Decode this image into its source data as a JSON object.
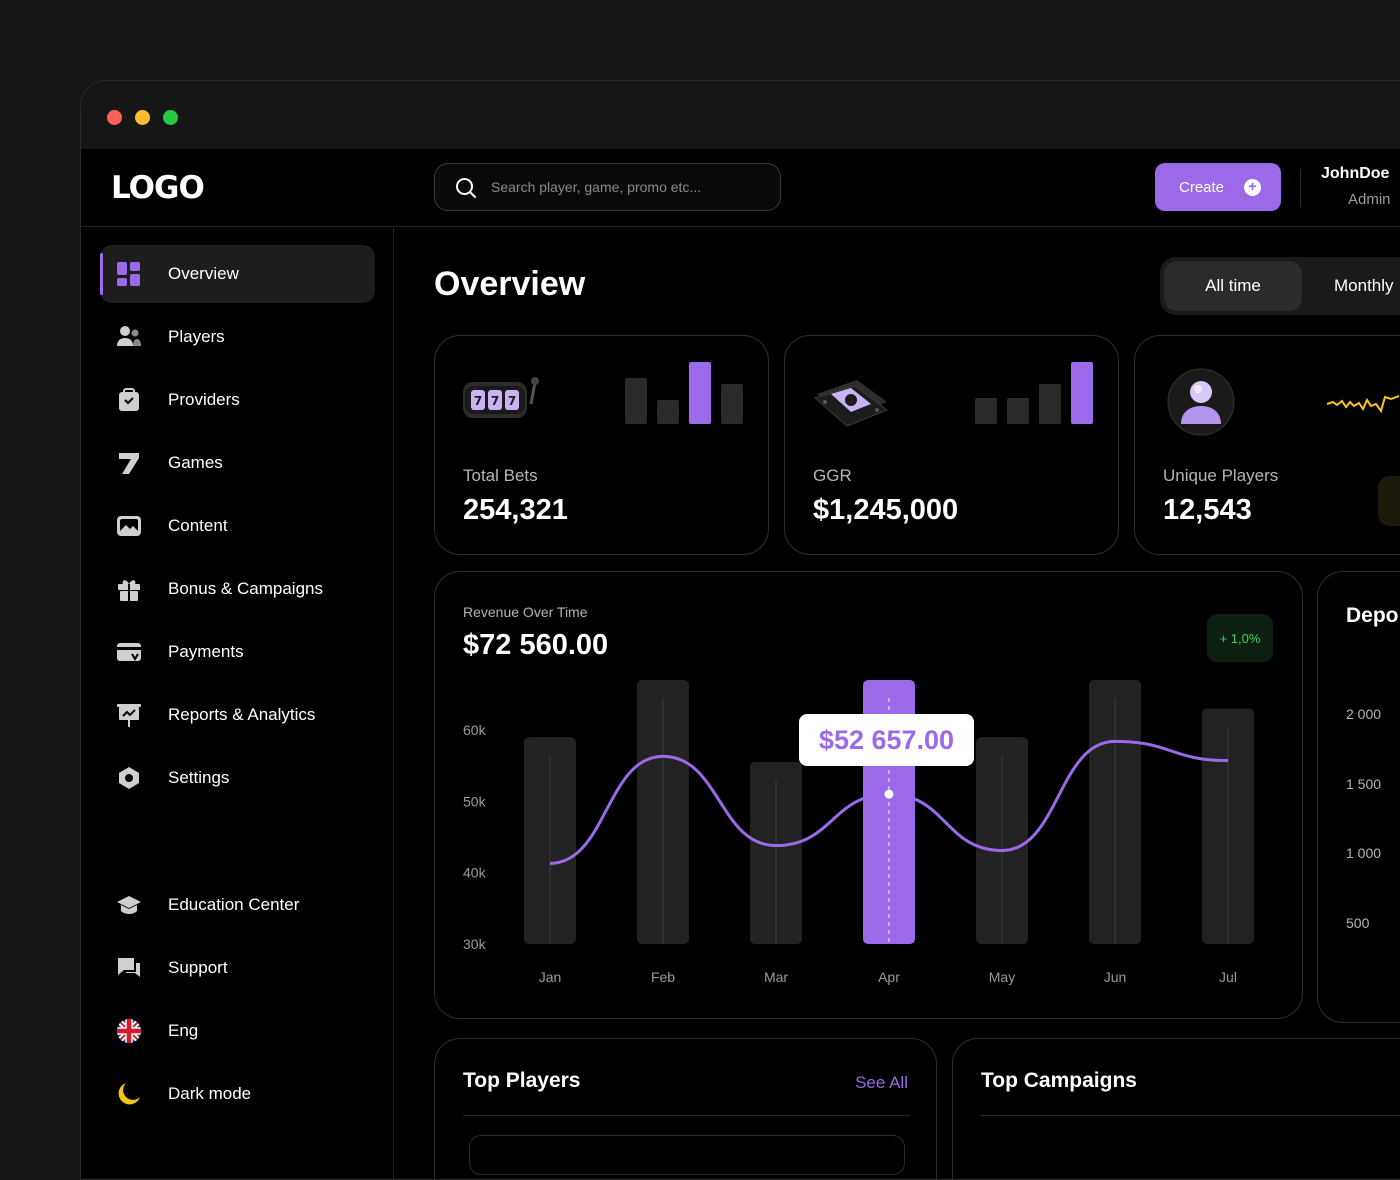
{
  "window": {
    "dots": [
      "#ff5f57",
      "#febc2e",
      "#28c840"
    ]
  },
  "topbar": {
    "logo": "LOGO",
    "search_placeholder": "Search player, game, promo etc...",
    "create_label": "Create",
    "user_name": "JohnDoe",
    "user_role": "Admin"
  },
  "sidebar": {
    "items": [
      {
        "label": "Overview",
        "icon": "grid-icon"
      },
      {
        "label": "Players",
        "icon": "users-icon"
      },
      {
        "label": "Providers",
        "icon": "briefcase-icon"
      },
      {
        "label": "Games",
        "icon": "seven-icon"
      },
      {
        "label": "Content",
        "icon": "image-icon"
      },
      {
        "label": "Bonus & Campaigns",
        "icon": "gift-icon"
      },
      {
        "label": "Payments",
        "icon": "card-icon"
      },
      {
        "label": "Reports & Analytics",
        "icon": "presentation-icon"
      },
      {
        "label": "Settings",
        "icon": "hexagon-icon"
      }
    ],
    "bottom_items": [
      {
        "label": "Education Center",
        "icon": "graduation-cap-icon"
      },
      {
        "label": "Support",
        "icon": "chat-icon"
      },
      {
        "label": "Eng",
        "icon": "uk-flag-icon"
      },
      {
        "label": "Dark mode",
        "icon": "moon-icon"
      }
    ]
  },
  "main": {
    "title": "Overview",
    "tabs": [
      "All time",
      "Monthly"
    ],
    "kpis": [
      {
        "label": "Total Bets",
        "value": "254,321",
        "icon": "slot-machine-icon"
      },
      {
        "label": "GGR",
        "value": "$1,245,000",
        "icon": "money-icon"
      },
      {
        "label": "Unique Players",
        "value": "12,543",
        "icon": "user-avatar-icon"
      }
    ],
    "revenue": {
      "subtitle": "Revenue Over Time",
      "total": "$72 560.00",
      "change": "+ 1,0%",
      "tooltip": "$52 657.00"
    },
    "deposits": {
      "title": "Depo",
      "ticks": [
        "2 000",
        "1 500",
        "1 000",
        "500"
      ]
    },
    "top_players": {
      "title": "Top Players",
      "see_all": "See All"
    },
    "top_campaigns": {
      "title": "Top Campaigns"
    }
  },
  "colors": {
    "accent": "#9b6ae8",
    "positive": "#3bd15a",
    "sparkline": "#f5c518"
  },
  "chart_data": {
    "type": "bar",
    "categories": [
      "Jan",
      "Feb",
      "Mar",
      "Apr",
      "May",
      "Jun",
      "Jul"
    ],
    "series": [
      {
        "type": "bar",
        "values": [
          59000,
          67000,
          55500,
          67000,
          59000,
          67000,
          63000
        ]
      },
      {
        "type": "line",
        "values": [
          41300,
          56300,
          43800,
          51000,
          43100,
          58400,
          55700
        ]
      }
    ],
    "highlight_category": "Apr",
    "yticks": [
      "60k",
      "50k",
      "40k",
      "30k"
    ],
    "ylim": [
      30000,
      67000
    ]
  }
}
